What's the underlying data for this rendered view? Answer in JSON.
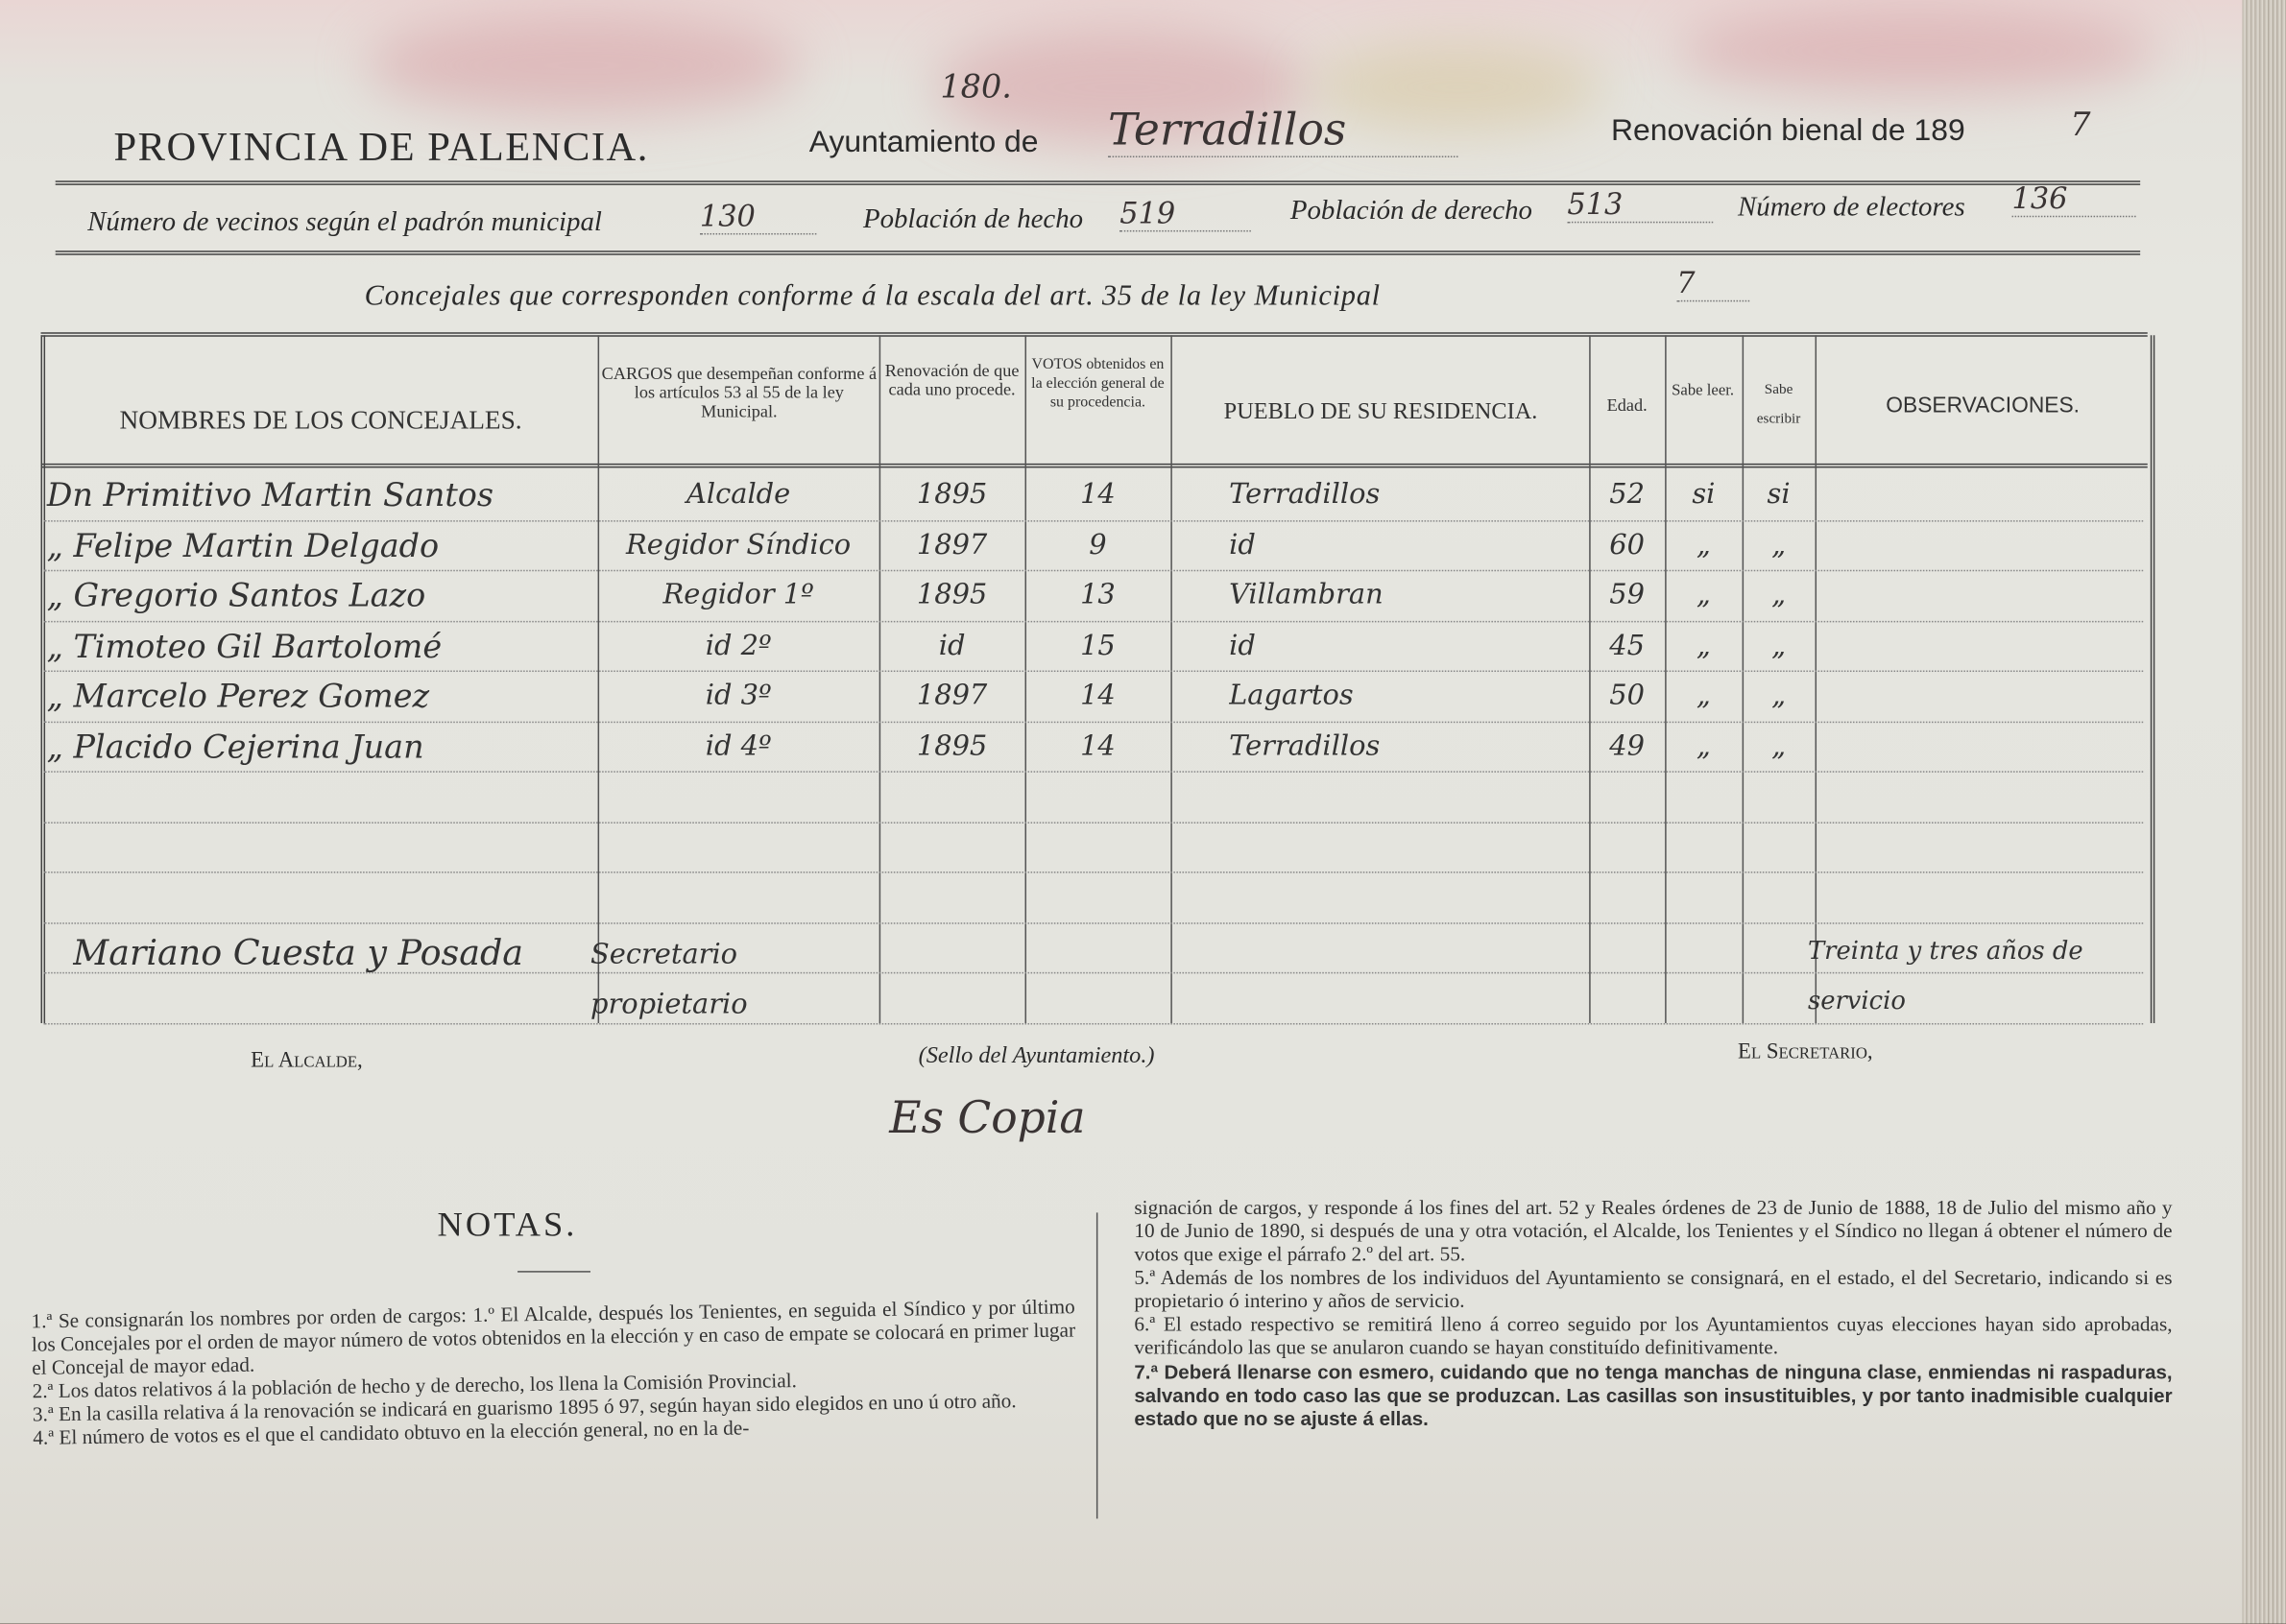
{
  "header": {
    "province": "PROVINCIA DE PALENCIA.",
    "ayuntamiento_label": "Ayuntamiento de",
    "ayuntamiento_number": "180.",
    "ayuntamiento_name": "Terradillos",
    "renovacion_label": "Renovación bienal de 189",
    "renovacion_year_digit": "7"
  },
  "stats": {
    "vecinos_label": "Número de vecinos según el padrón municipal",
    "vecinos": "130",
    "hecho_label": "Población de hecho",
    "hecho": "519",
    "derecho_label": "Población de derecho",
    "derecho": "513",
    "electores_label": "Número de electores",
    "electores": "136"
  },
  "concejales_line": {
    "label": "Concejales que corresponden conforme á la escala del art. 35 de la ley Municipal",
    "value": "7"
  },
  "table": {
    "headers": [
      "NOMBRES DE LOS CONCEJALES.",
      "CARGOS que desempeñan conforme á los artículos 53 al 55 de la ley Municipal.",
      "Renovación de que cada uno procede.",
      "VOTOS obtenidos en la elección general de su procedencia.",
      "PUEBLO DE SU RESIDENCIA.",
      "Edad.",
      "Sabe leer.",
      "Sabe escribir",
      "OBSERVACIONES."
    ],
    "rows": [
      [
        "Dn Primitivo Martin Santos",
        "Alcalde",
        "1895",
        "14",
        "Terradillos",
        "52",
        "si",
        "si",
        ""
      ],
      [
        "„ Felipe Martin Delgado",
        "Regidor Síndico",
        "1897",
        "9",
        "id",
        "60",
        "„",
        "„",
        ""
      ],
      [
        "„ Gregorio Santos Lazo",
        "Regidor 1º",
        "1895",
        "13",
        "Villambran",
        "59",
        "„",
        "„",
        ""
      ],
      [
        "„ Timoteo Gil Bartolomé",
        "id 2º",
        "id",
        "15",
        "id",
        "45",
        "„",
        "„",
        ""
      ],
      [
        "„ Marcelo Perez Gomez",
        "id 3º",
        "1897",
        "14",
        "Lagartos",
        "50",
        "„",
        "„",
        ""
      ],
      [
        "„ Placido Cejerina Juan",
        "id 4º",
        "1895",
        "14",
        "Terradillos",
        "49",
        "„",
        "„",
        ""
      ]
    ],
    "secretary": {
      "name": "Mariano Cuesta y Posada",
      "cargo": "Secretario propietario",
      "observaciones": "Treinta y tres años de servicio"
    }
  },
  "signatures": {
    "alcalde": "El Alcalde,",
    "sello": "(Sello del Ayuntamiento.)",
    "secretario": "El Secretario,",
    "copia": "Es Copia"
  },
  "notes": {
    "title": "NOTAS.",
    "left": [
      "1.ª Se consignarán los nombres por orden de cargos: 1.º El Alcalde, después los Tenientes, en seguida el Síndico y por último los Concejales por el orden de mayor número de votos obtenidos en la elección y en caso de empate se colocará en primer lugar el Concejal de mayor edad.",
      "2.ª Los datos relativos á la población de hecho y de derecho, los llena la Comisión Provincial.",
      "3.ª En la casilla relativa á la renovación se indicará en guarismo 1895 ó 97, según hayan sido elegidos en uno ú otro año.",
      "4.ª El número de votos es el que el candidato obtuvo en la elección general, no en la de-"
    ],
    "right": [
      "signación de cargos, y responde á los fines del art. 52 y Reales órdenes de 23 de Junio de 1888, 18 de Julio del mismo año y 10 de Junio de 1890, si después de una y otra votación, el Alcalde, los Tenientes y el Síndico no llegan á obtener el número de votos que exige el párrafo 2.º del art. 55.",
      "5.ª Además de los nombres de los individuos del Ayuntamiento se consignará, en el estado, el del Secretario, indicando si es propietario ó interino y años de servicio.",
      "6.ª El estado respectivo se remitirá lleno á correo seguido por los Ayuntamientos cuyas elecciones hayan sido aprobadas, verificándolo las que se anularon cuando se hayan constituído definitivamente."
    ],
    "bold": "7.ª Deberá llenarse con esmero, cuidando que no tenga manchas de ninguna clase, enmiendas ni raspaduras, salvando en todo caso las que se produzcan. Las casillas son insustituibles, y por tanto inadmisible cualquier estado que no se ajuste á ellas."
  },
  "colors": {
    "paper": "#e4e3dd",
    "ink": "#2b2b2b",
    "stain": "#d9a3a8"
  }
}
